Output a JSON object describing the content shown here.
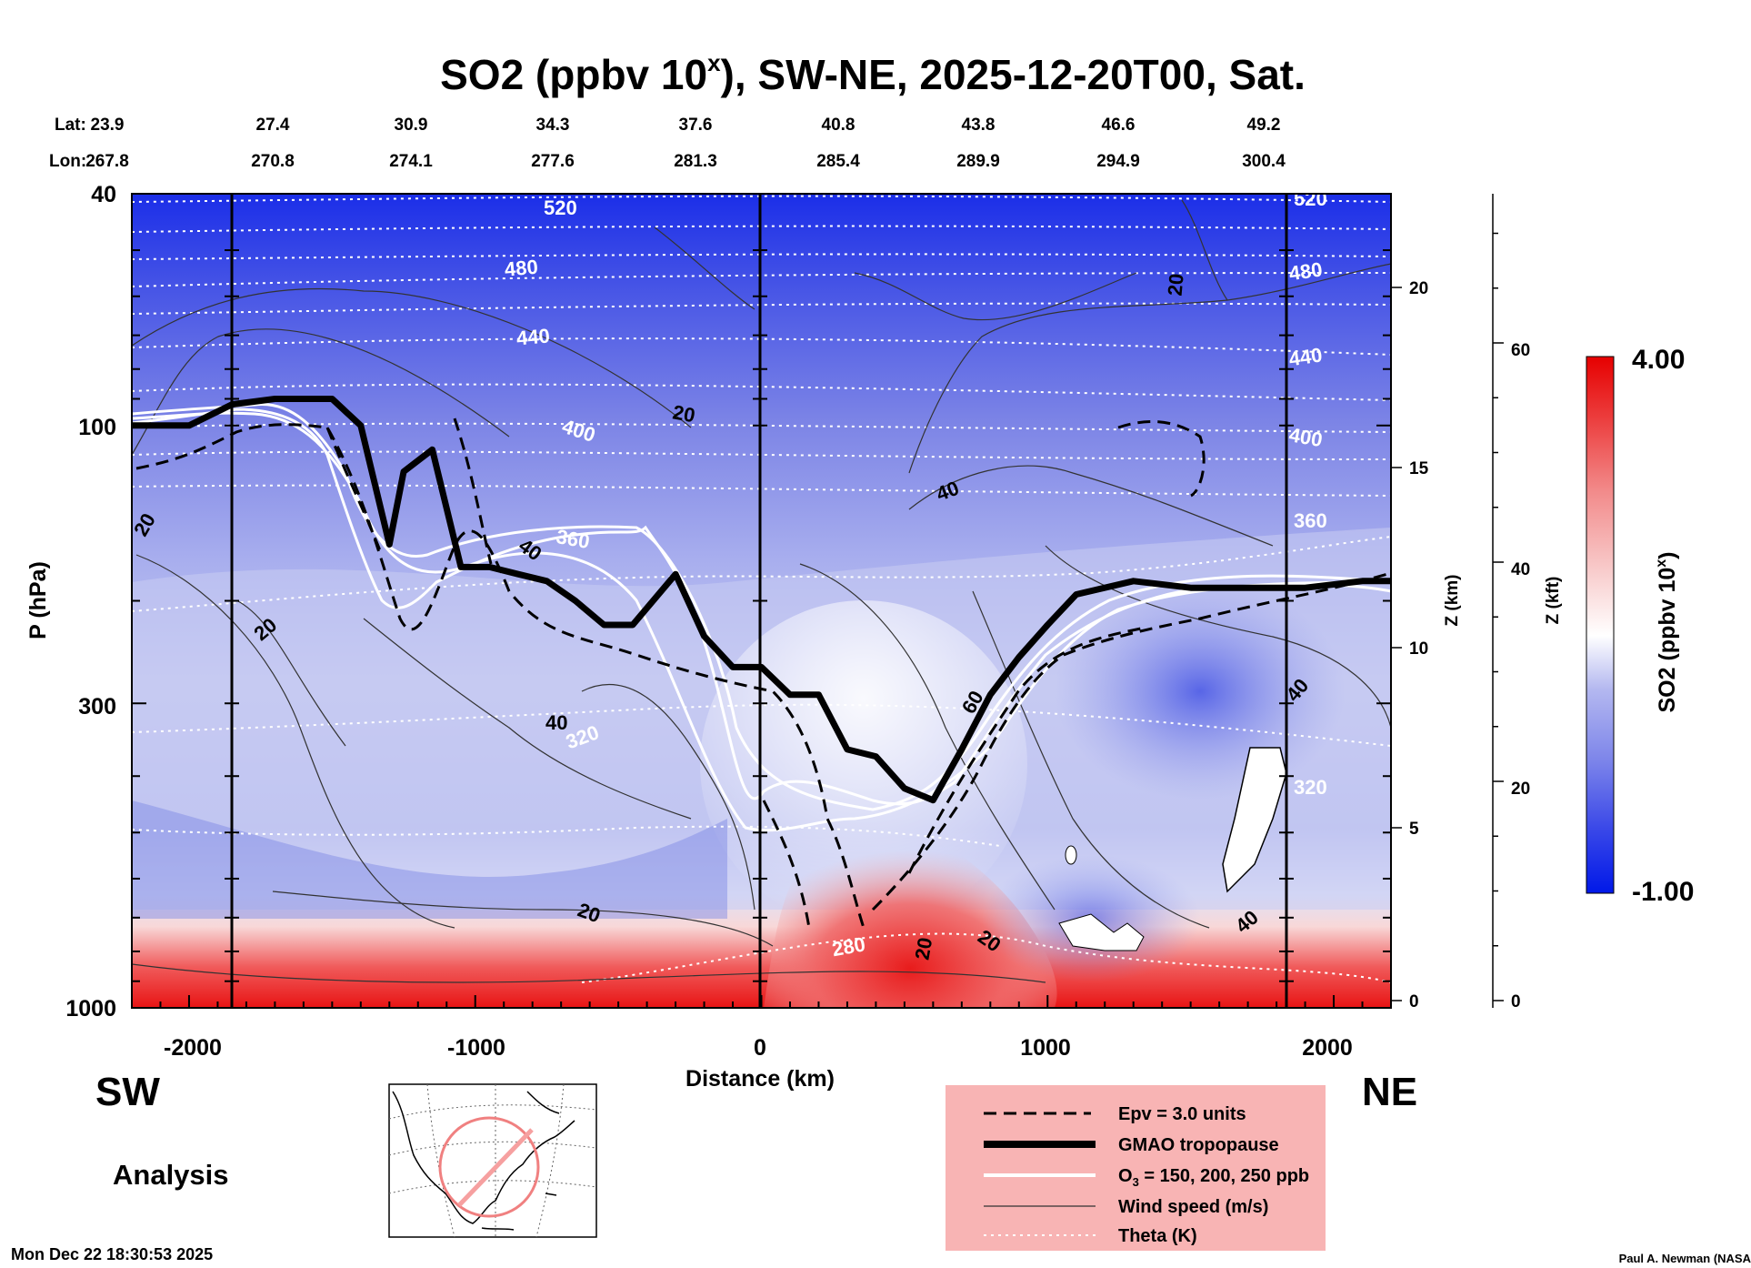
{
  "title_main": "SO2 (ppbv 10",
  "title_sup": "x",
  "title_rest": "), SW-NE, 2025-12-20T00, Sat.",
  "header": {
    "lat_label": "Lat:",
    "lon_label": "Lon:",
    "lat_values": [
      "23.9",
      "27.4",
      "30.9",
      "34.3",
      "37.6",
      "40.8",
      "43.8",
      "46.6",
      "49.2"
    ],
    "lon_values": [
      "267.8",
      "270.8",
      "274.1",
      "277.6",
      "281.3",
      "285.4",
      "289.9",
      "294.9",
      "300.4"
    ]
  },
  "left_axis": {
    "label": "P (hPa)",
    "ticks": [
      "40",
      "100",
      "300",
      "1000"
    ]
  },
  "z_km_axis": {
    "label": "Z (km)",
    "ticks": [
      "20",
      "15",
      "10",
      "5",
      "0"
    ]
  },
  "z_kft_axis": {
    "label": "Z (kft)",
    "ticks": [
      "60",
      "40",
      "20",
      "0"
    ]
  },
  "x_axis": {
    "label": "Distance (km)",
    "ticks": [
      "-2000",
      "-1000",
      "0",
      "1000",
      "2000"
    ]
  },
  "direction": {
    "left": "SW",
    "right": "NE"
  },
  "analysis_label": "Analysis",
  "colorbar": {
    "max_label": "4.00",
    "min_label": "-1.00",
    "label_main": "SO2 (ppbv 10",
    "label_sup": "x",
    "label_end": ")",
    "colors": [
      "#0018e8",
      "#5a66e8",
      "#9aa2ec",
      "#d4d6f4",
      "#ffffff",
      "#f8d0d0",
      "#f29090",
      "#ec4a4a",
      "#e60000"
    ]
  },
  "legend": {
    "items": [
      {
        "label": "Epv = 3.0 units",
        "style": "dashed"
      },
      {
        "label": "GMAO tropopause",
        "style": "thick"
      },
      {
        "label": "O",
        "sub": "3",
        "rest": " = 150, 200, 250 ppb",
        "style": "white"
      },
      {
        "label": "Wind speed (m/s)",
        "style": "thin"
      },
      {
        "label": "Theta (K)",
        "style": "dotted"
      }
    ],
    "background": "#f8b4b4"
  },
  "contour_labels": {
    "wind": [
      "20",
      "20",
      "20",
      "40",
      "40",
      "40",
      "60",
      "20",
      "20",
      "20",
      "40",
      "40",
      "20"
    ],
    "theta": [
      "520",
      "480",
      "440",
      "400",
      "360",
      "320",
      "520",
      "480",
      "440",
      "400",
      "360",
      "320",
      "280"
    ]
  },
  "footer": {
    "timestamp": "Mon Dec 22 18:30:53 2025",
    "credit": "Paul A. Newman (NASA"
  },
  "chart_data": {
    "type": "heatmap",
    "title": "SO2 (ppbv 10^x), SW-NE, 2025-12-20T00, Sat.",
    "xlabel": "Distance (km)",
    "ylabel": "P (hPa)",
    "xlim": [
      -2200,
      2200
    ],
    "ylim_pressure": [
      1000,
      40
    ],
    "y_scale": "log",
    "color_range": [
      -1.0,
      4.0
    ],
    "vertical_markers_km": [
      -1850,
      0,
      1850
    ],
    "tropopause": {
      "x": [
        -2200,
        -2000,
        -1850,
        -1700,
        -1500,
        -1400,
        -1300,
        -1250,
        -1150,
        -1050,
        -950,
        -850,
        -750,
        -650,
        -550,
        -450,
        -300,
        -200,
        -100,
        0,
        100,
        200,
        300,
        400,
        500,
        600,
        700,
        800,
        900,
        1000,
        1100,
        1300,
        1500,
        1700,
        1900,
        2100,
        2200
      ],
      "p": [
        100,
        100,
        92,
        90,
        90,
        100,
        160,
        120,
        110,
        175,
        175,
        180,
        185,
        200,
        220,
        220,
        180,
        230,
        260,
        260,
        290,
        290,
        360,
        370,
        420,
        440,
        360,
        290,
        250,
        220,
        195,
        185,
        190,
        190,
        190,
        185,
        185
      ]
    },
    "theta_levels_K": [
      280,
      320,
      360,
      400,
      440,
      480,
      520
    ],
    "wind_speed_levels_ms": [
      20,
      40,
      60
    ]
  }
}
